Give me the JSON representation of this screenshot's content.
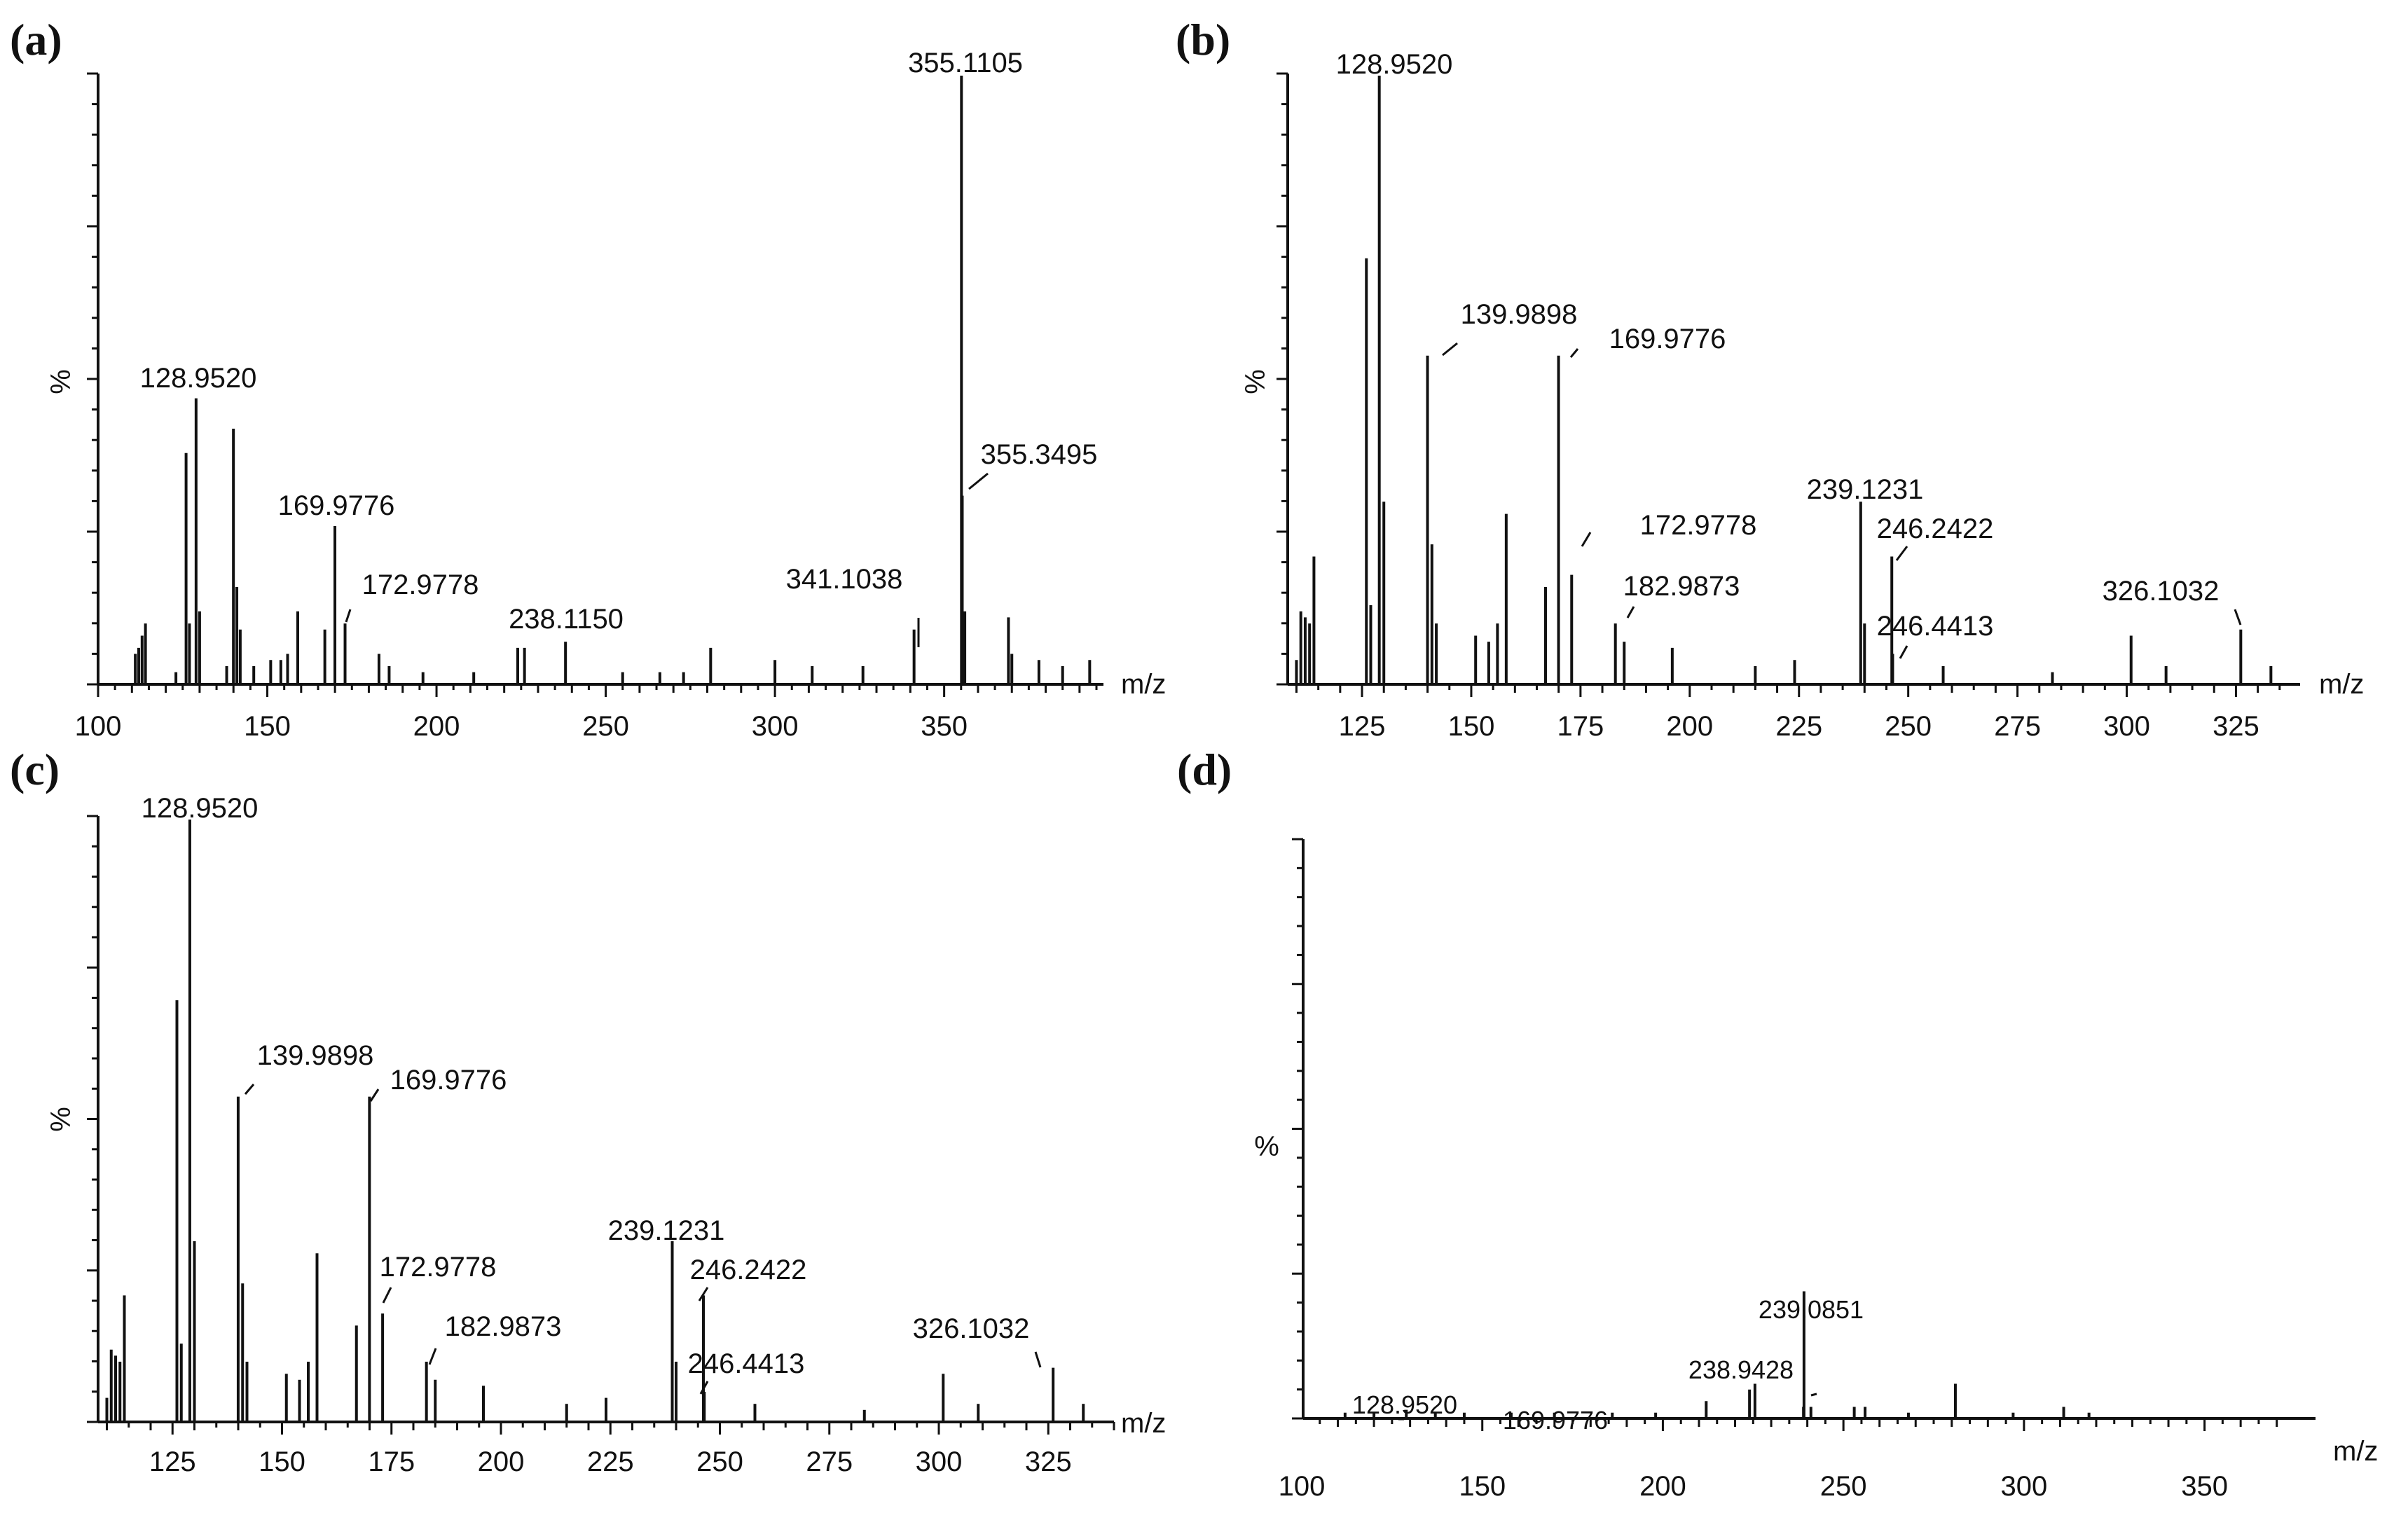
{
  "chart_data": [
    {
      "type": "bar",
      "panel": "(a)",
      "xlabel": "m/z",
      "ylabel": "%",
      "xlim": [
        100,
        395
      ],
      "ylim": [
        0,
        100
      ],
      "xticks": [
        100,
        150,
        200,
        250,
        300,
        350
      ],
      "peaks": [
        {
          "mz": 111,
          "rel": 5
        },
        {
          "mz": 112,
          "rel": 6
        },
        {
          "mz": 113,
          "rel": 8
        },
        {
          "mz": 114,
          "rel": 10
        },
        {
          "mz": 123,
          "rel": 2
        },
        {
          "mz": 126,
          "rel": 38
        },
        {
          "mz": 127,
          "rel": 10
        },
        {
          "mz": 128.952,
          "label": "128.9520",
          "rel": 47
        },
        {
          "mz": 130,
          "rel": 12
        },
        {
          "mz": 138,
          "rel": 3
        },
        {
          "mz": 139.99,
          "rel": 42
        },
        {
          "mz": 141,
          "rel": 16
        },
        {
          "mz": 142,
          "rel": 9
        },
        {
          "mz": 146,
          "rel": 3
        },
        {
          "mz": 151,
          "rel": 4
        },
        {
          "mz": 154,
          "rel": 4
        },
        {
          "mz": 156,
          "rel": 5
        },
        {
          "mz": 159,
          "rel": 12
        },
        {
          "mz": 167,
          "rel": 9
        },
        {
          "mz": 169.9776,
          "label": "169.9776",
          "rel": 26
        },
        {
          "mz": 172.9778,
          "label": "172.9778",
          "rel": 10
        },
        {
          "mz": 183,
          "rel": 5
        },
        {
          "mz": 186,
          "rel": 3
        },
        {
          "mz": 196,
          "rel": 2
        },
        {
          "mz": 211,
          "rel": 2
        },
        {
          "mz": 224,
          "rel": 6
        },
        {
          "mz": 226,
          "rel": 6
        },
        {
          "mz": 238.115,
          "label": "238.1150",
          "rel": 7
        },
        {
          "mz": 255,
          "rel": 2
        },
        {
          "mz": 266,
          "rel": 2
        },
        {
          "mz": 273,
          "rel": 2
        },
        {
          "mz": 281,
          "rel": 6
        },
        {
          "mz": 300,
          "rel": 4
        },
        {
          "mz": 311,
          "rel": 3
        },
        {
          "mz": 326,
          "rel": 3
        },
        {
          "mz": 341.1038,
          "label": "341.1038",
          "rel": 9
        },
        {
          "mz": 355.1105,
          "label": "355.1105",
          "rel": 100
        },
        {
          "mz": 355.3495,
          "label": "355.3495",
          "rel": 31
        },
        {
          "mz": 356.1,
          "rel": 12
        },
        {
          "mz": 369,
          "rel": 11
        },
        {
          "mz": 370,
          "rel": 5
        },
        {
          "mz": 378,
          "rel": 4
        },
        {
          "mz": 385,
          "rel": 3
        },
        {
          "mz": 393,
          "rel": 4
        }
      ],
      "labels": [
        {
          "text": "355.1105",
          "mz": 355.1105,
          "rel": 100
        },
        {
          "text": "128.9520",
          "mz": 128.952,
          "rel": 47
        },
        {
          "text": "355.3495",
          "mz": 355.3495,
          "rel": 31
        },
        {
          "text": "169.9776",
          "mz": 169.9776,
          "rel": 26
        },
        {
          "text": "341.1038",
          "mz": 341.1038,
          "rel": 9
        },
        {
          "text": "172.9778",
          "mz": 172.9778,
          "rel": 10
        },
        {
          "text": "238.1150",
          "mz": 238.115,
          "rel": 7
        }
      ]
    },
    {
      "type": "bar",
      "panel": "(b)",
      "xlabel": "m/z",
      "ylabel": "%",
      "xlim": [
        108,
        340
      ],
      "ylim": [
        0,
        100
      ],
      "xticks": [
        125,
        150,
        175,
        200,
        225,
        250,
        275,
        300,
        325
      ],
      "peaks": [
        {
          "mz": 110,
          "rel": 4
        },
        {
          "mz": 111,
          "rel": 12
        },
        {
          "mz": 112,
          "rel": 11
        },
        {
          "mz": 113,
          "rel": 10
        },
        {
          "mz": 114,
          "rel": 21
        },
        {
          "mz": 126,
          "rel": 70
        },
        {
          "mz": 127,
          "rel": 13
        },
        {
          "mz": 128.952,
          "label": "128.9520",
          "rel": 100
        },
        {
          "mz": 130,
          "rel": 30
        },
        {
          "mz": 139.9898,
          "label": "139.9898",
          "rel": 54
        },
        {
          "mz": 141,
          "rel": 23
        },
        {
          "mz": 142,
          "rel": 10
        },
        {
          "mz": 151,
          "rel": 8
        },
        {
          "mz": 154,
          "rel": 7
        },
        {
          "mz": 156,
          "rel": 10
        },
        {
          "mz": 158,
          "rel": 28
        },
        {
          "mz": 167,
          "rel": 16
        },
        {
          "mz": 169.9776,
          "label": "169.9776",
          "rel": 54
        },
        {
          "mz": 172.9778,
          "label": "172.9778",
          "rel": 18
        },
        {
          "mz": 182.9873,
          "label": "182.9873",
          "rel": 10
        },
        {
          "mz": 185,
          "rel": 7
        },
        {
          "mz": 196,
          "rel": 6
        },
        {
          "mz": 215,
          "rel": 3
        },
        {
          "mz": 224,
          "rel": 4
        },
        {
          "mz": 239.1231,
          "label": "239.1231",
          "rel": 30
        },
        {
          "mz": 240,
          "rel": 10
        },
        {
          "mz": 246.2422,
          "label": "246.2422",
          "rel": 21
        },
        {
          "mz": 246.4413,
          "label": "246.4413",
          "rel": 5
        },
        {
          "mz": 258,
          "rel": 3
        },
        {
          "mz": 283,
          "rel": 2
        },
        {
          "mz": 301,
          "rel": 8
        },
        {
          "mz": 309,
          "rel": 3
        },
        {
          "mz": 326.1032,
          "label": "326.1032",
          "rel": 9
        },
        {
          "mz": 333,
          "rel": 3
        }
      ],
      "labels": [
        {
          "text": "128.9520",
          "mz": 128.952,
          "rel": 100
        },
        {
          "text": "139.9898",
          "mz": 139.9898,
          "rel": 54
        },
        {
          "text": "169.9776",
          "mz": 169.9776,
          "rel": 54
        },
        {
          "text": "172.9778",
          "mz": 172.9778,
          "rel": 18
        },
        {
          "text": "182.9873",
          "mz": 182.9873,
          "rel": 10
        },
        {
          "text": "239.1231",
          "mz": 239.1231,
          "rel": 30
        },
        {
          "text": "246.2422",
          "mz": 246.2422,
          "rel": 21
        },
        {
          "text": "246.4413",
          "mz": 246.4413,
          "rel": 5
        },
        {
          "text": "326.1032",
          "mz": 326.1032,
          "rel": 9
        }
      ]
    },
    {
      "type": "bar",
      "panel": "(c)",
      "xlabel": "m/z",
      "ylabel": "%",
      "xlim": [
        108,
        340
      ],
      "ylim": [
        0,
        100
      ],
      "xticks": [
        125,
        150,
        175,
        200,
        225,
        250,
        275,
        300,
        325
      ],
      "peaks": [
        {
          "mz": 110,
          "rel": 4
        },
        {
          "mz": 111,
          "rel": 12
        },
        {
          "mz": 112,
          "rel": 11
        },
        {
          "mz": 113,
          "rel": 10
        },
        {
          "mz": 114,
          "rel": 21
        },
        {
          "mz": 126,
          "rel": 70
        },
        {
          "mz": 127,
          "rel": 13
        },
        {
          "mz": 128.952,
          "label": "128.9520",
          "rel": 100
        },
        {
          "mz": 130,
          "rel": 30
        },
        {
          "mz": 139.9898,
          "label": "139.9898",
          "rel": 54
        },
        {
          "mz": 141,
          "rel": 23
        },
        {
          "mz": 142,
          "rel": 10
        },
        {
          "mz": 151,
          "rel": 8
        },
        {
          "mz": 154,
          "rel": 7
        },
        {
          "mz": 156,
          "rel": 10
        },
        {
          "mz": 158,
          "rel": 28
        },
        {
          "mz": 167,
          "rel": 16
        },
        {
          "mz": 169.9776,
          "label": "169.9776",
          "rel": 54
        },
        {
          "mz": 172.9778,
          "label": "172.9778",
          "rel": 18
        },
        {
          "mz": 182.9873,
          "label": "182.9873",
          "rel": 10
        },
        {
          "mz": 185,
          "rel": 7
        },
        {
          "mz": 196,
          "rel": 6
        },
        {
          "mz": 215,
          "rel": 3
        },
        {
          "mz": 224,
          "rel": 4
        },
        {
          "mz": 239.1231,
          "label": "239.1231",
          "rel": 30
        },
        {
          "mz": 240,
          "rel": 10
        },
        {
          "mz": 246.2422,
          "label": "246.2422",
          "rel": 21
        },
        {
          "mz": 246.4413,
          "label": "246.4413",
          "rel": 5
        },
        {
          "mz": 258,
          "rel": 3
        },
        {
          "mz": 283,
          "rel": 2
        },
        {
          "mz": 301,
          "rel": 8
        },
        {
          "mz": 309,
          "rel": 3
        },
        {
          "mz": 326.1032,
          "label": "326.1032",
          "rel": 9
        },
        {
          "mz": 333,
          "rel": 3
        }
      ],
      "labels": [
        {
          "text": "128.9520",
          "mz": 128.952,
          "rel": 100
        },
        {
          "text": "139.9898",
          "mz": 139.9898,
          "rel": 54
        },
        {
          "text": "169.9776",
          "mz": 169.9776,
          "rel": 54
        },
        {
          "text": "172.9778",
          "mz": 172.9778,
          "rel": 18
        },
        {
          "text": "182.9873",
          "mz": 182.9873,
          "rel": 10
        },
        {
          "text": "239.1231",
          "mz": 239.1231,
          "rel": 30
        },
        {
          "text": "246.2422",
          "mz": 246.2422,
          "rel": 21
        },
        {
          "text": "246.4413",
          "mz": 246.4413,
          "rel": 5
        },
        {
          "text": "326.1032",
          "mz": 326.1032,
          "rel": 9
        }
      ]
    },
    {
      "type": "bar",
      "panel": "(d)",
      "xlabel": "m/z",
      "ylabel": "%",
      "xlim": [
        100,
        372
      ],
      "ylim": [
        0,
        100
      ],
      "xticks": [
        100,
        150,
        200,
        250,
        300,
        350
      ],
      "peaks": [
        {
          "mz": 112,
          "rel": 1
        },
        {
          "mz": 120,
          "rel": 1
        },
        {
          "mz": 128.952,
          "label": "128.9520",
          "rel": 1.5
        },
        {
          "mz": 137,
          "rel": 1
        },
        {
          "mz": 145,
          "rel": 1
        },
        {
          "mz": 158,
          "rel": 1
        },
        {
          "mz": 169.9776,
          "label": "169.9776",
          "rel": 1
        },
        {
          "mz": 186,
          "rel": 1
        },
        {
          "mz": 198,
          "rel": 1
        },
        {
          "mz": 212,
          "rel": 3
        },
        {
          "mz": 224,
          "rel": 5
        },
        {
          "mz": 225.5,
          "rel": 6
        },
        {
          "mz": 238.9428,
          "label": "238.9428",
          "rel": 2
        },
        {
          "mz": 239.0851,
          "label": "239.0851",
          "rel": 22
        },
        {
          "mz": 241,
          "rel": 2
        },
        {
          "mz": 253,
          "rel": 2
        },
        {
          "mz": 256,
          "rel": 2
        },
        {
          "mz": 268,
          "rel": 1
        },
        {
          "mz": 281,
          "rel": 6
        },
        {
          "mz": 297,
          "rel": 1
        },
        {
          "mz": 311,
          "rel": 2
        },
        {
          "mz": 318,
          "rel": 1
        }
      ],
      "labels": [
        {
          "text": "239.0851",
          "mz": 239.0851,
          "rel": 22
        },
        {
          "text": "238.9428",
          "mz": 238.9428,
          "rel": 2
        },
        {
          "text": "128.9520",
          "mz": 128.952,
          "rel": 1.5
        },
        {
          "text": "169.9776",
          "mz": 169.9776,
          "rel": 1
        }
      ]
    }
  ]
}
